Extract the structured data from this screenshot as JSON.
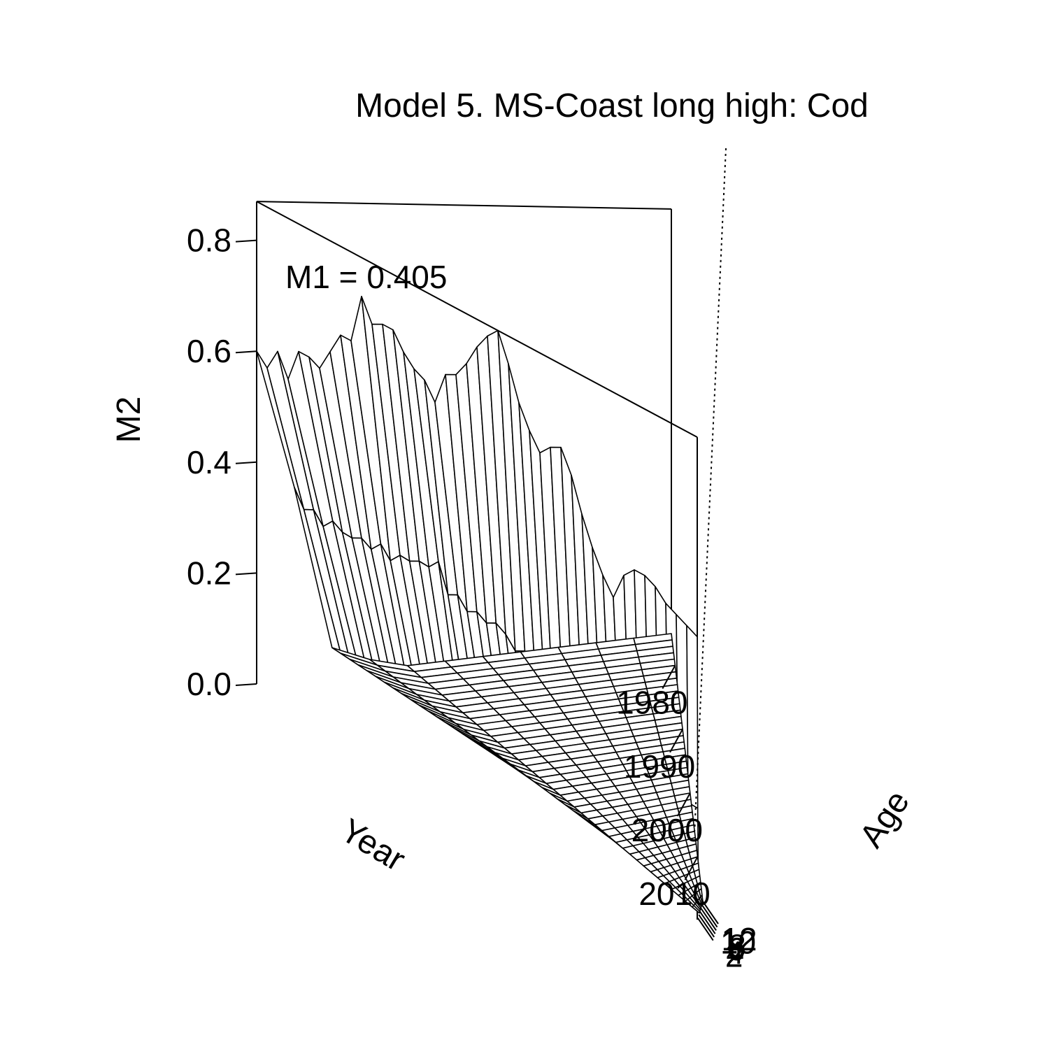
{
  "chart_data": {
    "type": "surface",
    "title": "Model 5. MS-Coast long high: Cod",
    "annotation": "M1 = 0.405",
    "xlabel": "Year",
    "ylabel": "Age",
    "zlabel": "M2",
    "xlim": [
      1975,
      2017
    ],
    "ylim": [
      1,
      12
    ],
    "zlim": [
      0,
      0.87
    ],
    "xticks": [
      "1980",
      "1990",
      "2000",
      "2010"
    ],
    "yticks": [
      "2",
      "4",
      "6",
      "8",
      "10",
      "12"
    ],
    "zticks": [
      "0.0",
      "0.2",
      "0.4",
      "0.6",
      "0.8"
    ],
    "years": [
      1975,
      1976,
      1977,
      1978,
      1979,
      1980,
      1981,
      1982,
      1983,
      1984,
      1985,
      1986,
      1987,
      1988,
      1989,
      1990,
      1991,
      1992,
      1993,
      1994,
      1995,
      1996,
      1997,
      1998,
      1999,
      2000,
      2001,
      2002,
      2003,
      2004,
      2005,
      2006,
      2007,
      2008,
      2009,
      2010,
      2011,
      2012,
      2013,
      2014,
      2015,
      2016,
      2017
    ],
    "ages": [
      1,
      2,
      3,
      4,
      5,
      6,
      7,
      8,
      9,
      10,
      11,
      12
    ],
    "m2_age1": [
      0.6,
      0.58,
      0.62,
      0.58,
      0.64,
      0.64,
      0.63,
      0.67,
      0.71,
      0.71,
      0.8,
      0.76,
      0.77,
      0.77,
      0.74,
      0.72,
      0.71,
      0.68,
      0.74,
      0.75,
      0.78,
      0.82,
      0.85,
      0.87,
      0.82,
      0.76,
      0.72,
      0.69,
      0.71,
      0.72,
      0.68,
      0.62,
      0.57,
      0.53,
      0.5,
      0.55,
      0.57,
      0.57,
      0.56,
      0.54,
      0.53,
      0.52,
      0.51
    ],
    "m2_age2": [
      0.35,
      0.32,
      0.33,
      0.31,
      0.33,
      0.32,
      0.32,
      0.33,
      0.32,
      0.34,
      0.32,
      0.34,
      0.34,
      0.35,
      0.35,
      0.37,
      0.32,
      0.33,
      0.31,
      0.32,
      0.31,
      0.32,
      0.31,
      0.29,
      0.3,
      0.29,
      0.27,
      0.22,
      0.24,
      0.24,
      0.24,
      0.23,
      0.21,
      0.2,
      0.2,
      0.2,
      0.2,
      0.2,
      0.2,
      0.2,
      0.2,
      0.2,
      0.2
    ],
    "m2_age3": [
      0.05,
      0.05,
      0.05,
      0.05,
      0.05,
      0.05,
      0.05,
      0.05,
      0.05,
      0.05,
      0.05,
      0.05,
      0.05,
      0.05,
      0.05,
      0.05,
      0.05,
      0.05,
      0.05,
      0.05,
      0.05,
      0.05,
      0.05,
      0.05,
      0.05,
      0.05,
      0.05,
      0.05,
      0.05,
      0.05,
      0.05,
      0.05,
      0.05,
      0.05,
      0.05,
      0.05,
      0.05,
      0.05,
      0.05,
      0.05,
      0.05,
      0.05,
      0.05
    ],
    "m2_age4": 0.02,
    "m2_age5_plus": 0.0
  }
}
